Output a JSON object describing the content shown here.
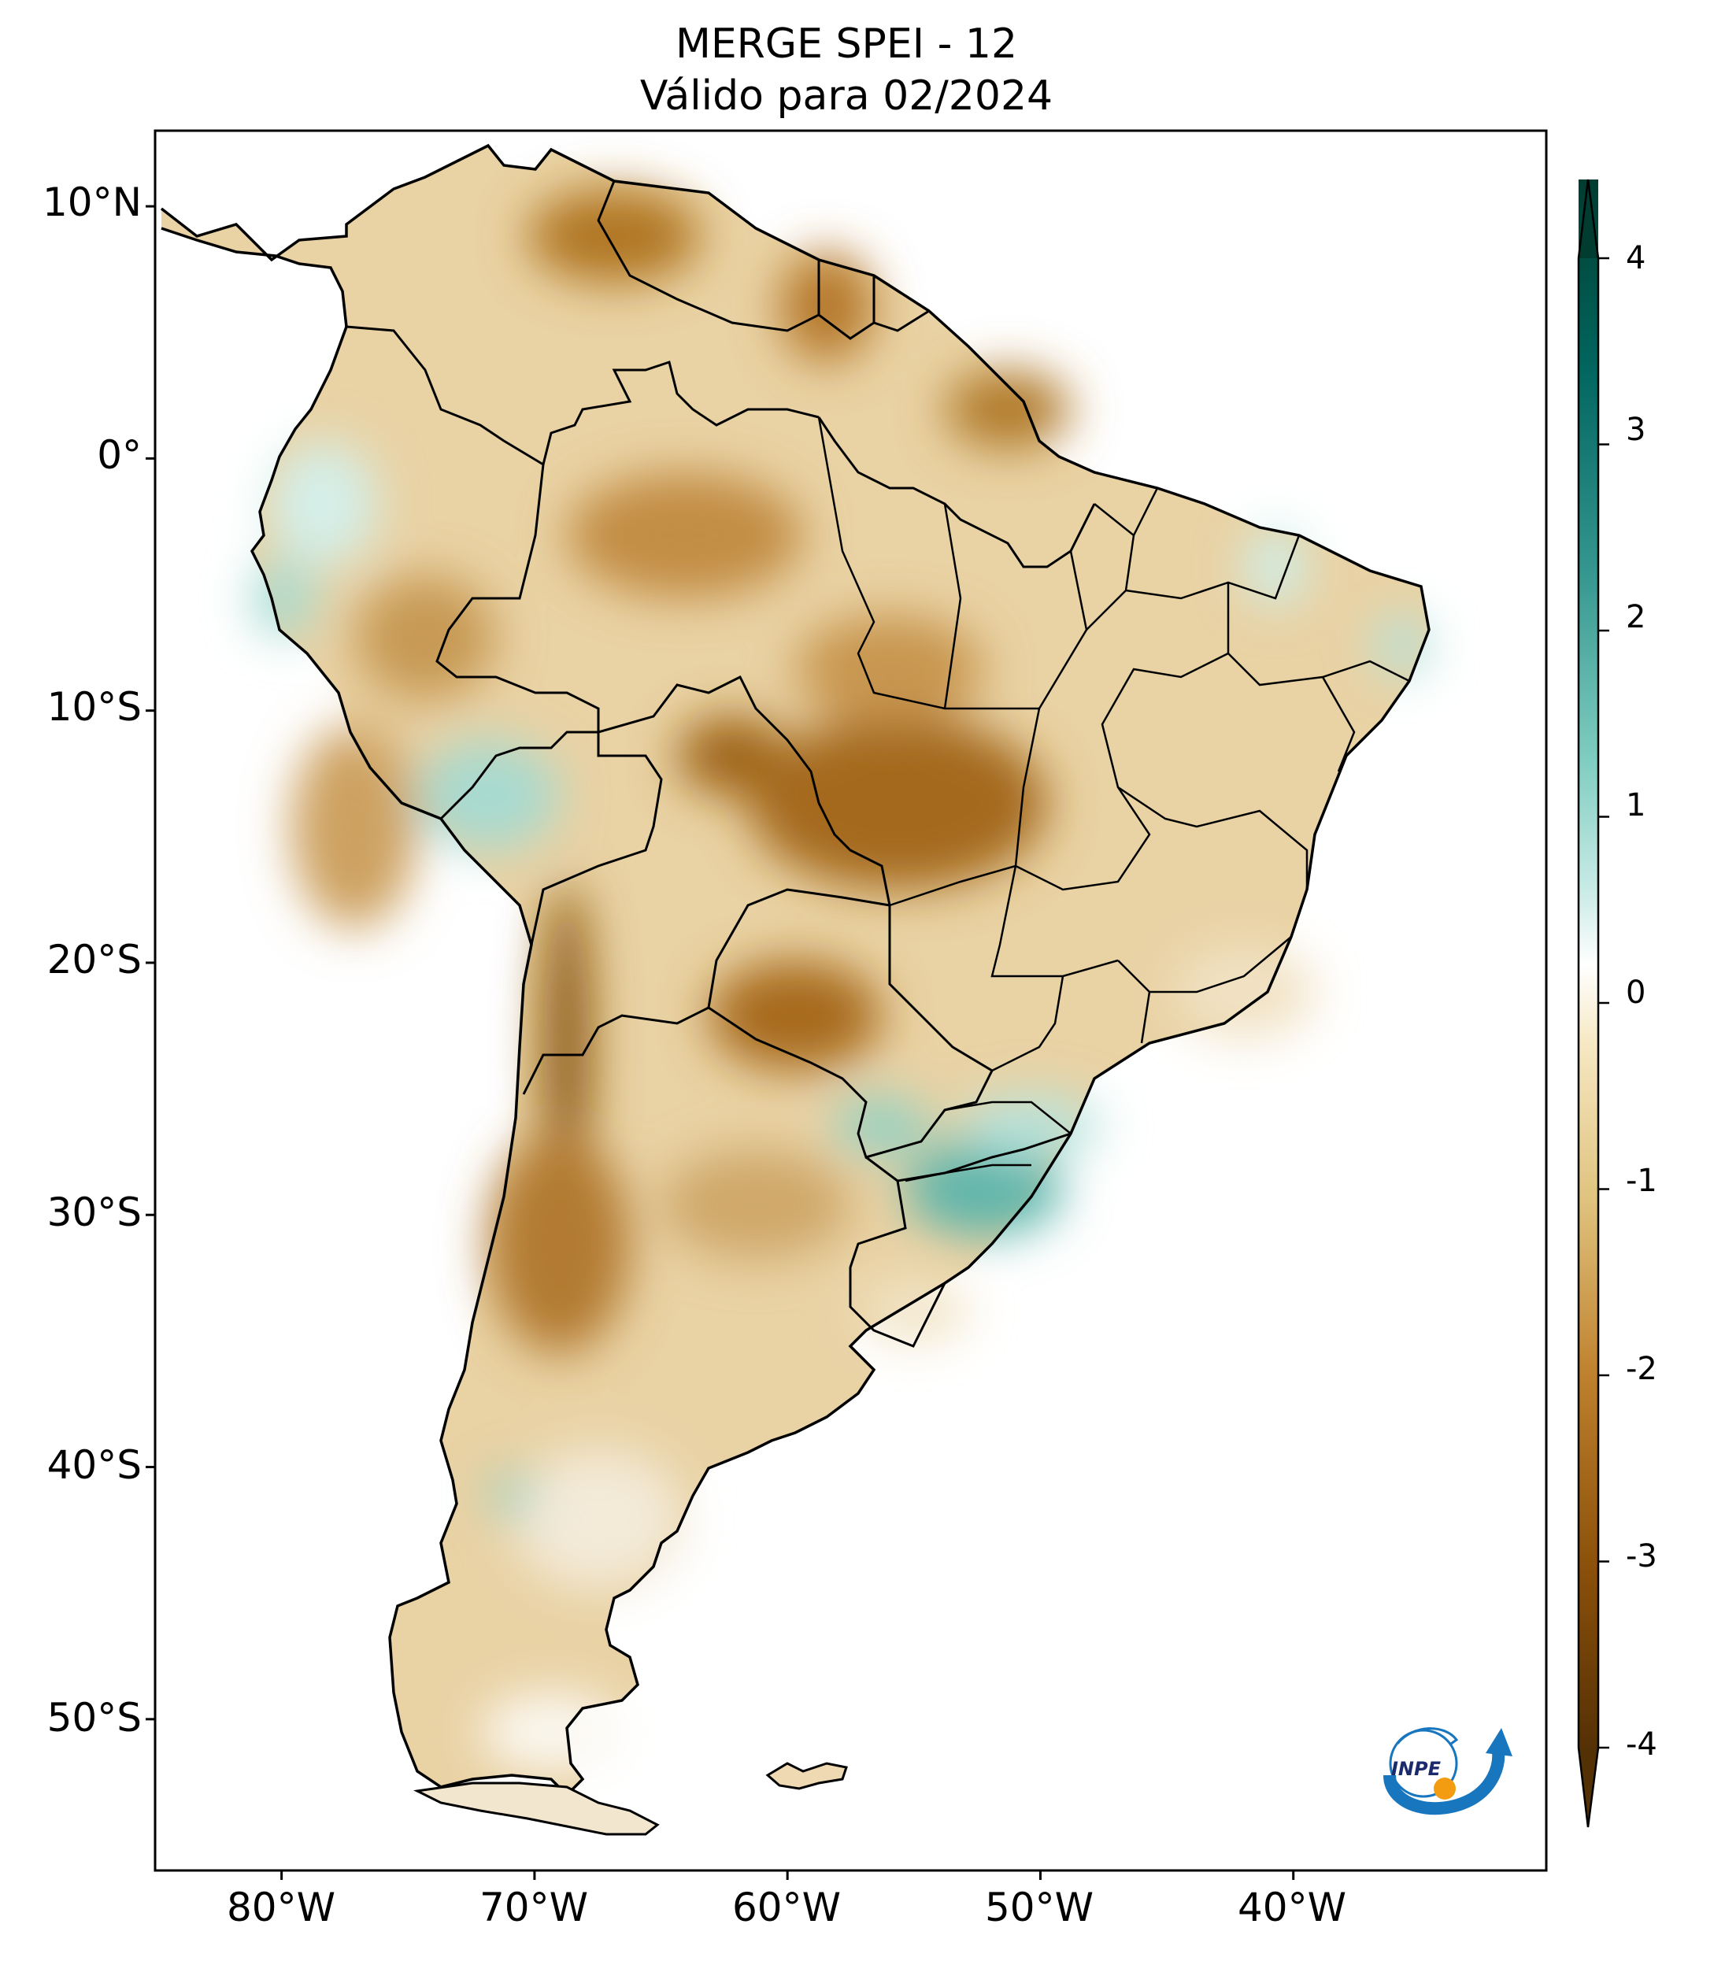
{
  "title": {
    "line1": "MERGE   SPEI - 12",
    "line2": "Válido para 02/2024"
  },
  "map": {
    "latitude_labels": [
      "10°N",
      "0°",
      "10°S",
      "20°S",
      "30°S",
      "40°S",
      "50°S"
    ],
    "latitude_values": [
      10,
      0,
      -10,
      -20,
      -30,
      -40,
      -50
    ],
    "longitude_labels": [
      "80°W",
      "70°W",
      "60°W",
      "50°W",
      "40°W"
    ],
    "longitude_values": [
      -80,
      -70,
      -60,
      -50,
      -40
    ],
    "extent": {
      "lon_min": -85,
      "lon_max": -30,
      "lat_min": -56,
      "lat_max": 13
    }
  },
  "colorbar": {
    "ticks": [
      "4",
      "3",
      "2",
      "1",
      "0",
      "-1",
      "-2",
      "-3",
      "-4"
    ],
    "tick_values": [
      4,
      3,
      2,
      1,
      0,
      -1,
      -2,
      -3,
      -4
    ],
    "min": -4.4,
    "max": 4.4,
    "colors": [
      "#543005",
      "#8c510a",
      "#bf812d",
      "#dfc27d",
      "#f6e8c3",
      "#ffffff",
      "#c7eae5",
      "#80cdc1",
      "#35978f",
      "#01665e",
      "#003c30"
    ]
  },
  "logo": {
    "text": "INPE"
  }
}
